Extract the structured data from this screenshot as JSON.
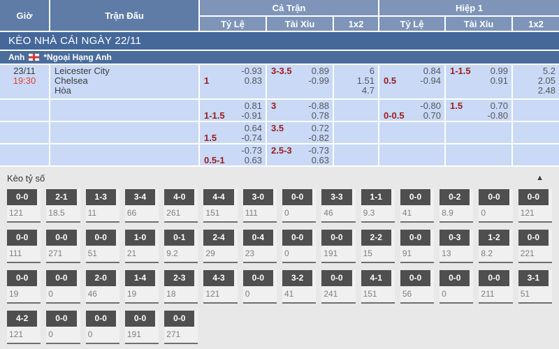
{
  "colors": {
    "header_blue": "#5e7ca6",
    "subheader_blue": "#7e95b9",
    "banner_blue": "#44689a",
    "league_blue": "#4a6d9b",
    "row_blue": "#c9d9f6",
    "accent_red": "#e63b2f",
    "handicap_maroon": "#9b1c1c",
    "score_box_gray": "#4f4f4f"
  },
  "table_header": {
    "time": "Giờ",
    "match": "Trận Đấu",
    "full_time": "Cả Trận",
    "first_half": "Hiệp 1",
    "handicap": "Tỷ Lệ",
    "over_under": "Tài Xỉu",
    "one_x_two": "1x2"
  },
  "date_banner": {
    "title": "KÈO NHÀ CÁI NGÀY 22/11"
  },
  "league_banner": {
    "country": "Anh",
    "flag_icon": "england-flag-icon",
    "league": "*Ngoại Hạng Anh"
  },
  "match": {
    "date": "23/11",
    "time": "19:30",
    "home": "Leicester City",
    "away": "Chelsea",
    "draw_label": "Hòa"
  },
  "odds_rows": [
    {
      "ft_handicap": {
        "line": "1",
        "over": "-0.93",
        "under": "0.83"
      },
      "ft_overunder": {
        "line": "3-3.5",
        "over": "0.89",
        "under": "-0.99"
      },
      "ft_1x2": {
        "home": "6",
        "away": "1.51",
        "draw": "4.7"
      },
      "h1_handicap": {
        "line": "0.5",
        "over": "0.84",
        "under": "-0.94"
      },
      "h1_overunder": {
        "line": "1-1.5",
        "over": "0.99",
        "under": "0.91"
      },
      "h1_1x2": {
        "home": "5.2",
        "away": "2.05",
        "draw": "2.48"
      }
    },
    {
      "ft_handicap": {
        "line": "1-1.5",
        "over": "0.81",
        "under": "-0.91"
      },
      "ft_overunder": {
        "line": "3",
        "over": "-0.88",
        "under": "0.78"
      },
      "h1_handicap": {
        "line": "0-0.5",
        "over": "-0.80",
        "under": "0.70"
      },
      "h1_overunder": {
        "line": "1.5",
        "over": "0.70",
        "under": "-0.80"
      }
    },
    {
      "ft_handicap": {
        "line": "1.5",
        "over": "0.64",
        "under": "-0.74"
      },
      "ft_overunder": {
        "line": "3.5",
        "over": "0.72",
        "under": "-0.82"
      }
    },
    {
      "ft_handicap": {
        "line": "0.5-1",
        "over": "-0.73",
        "under": "0.63"
      },
      "ft_overunder": {
        "line": "2.5-3",
        "over": "-0.73",
        "under": "0.63"
      }
    }
  ],
  "score_section": {
    "title": "Kèo tỷ số",
    "collapse_icon_glyph": "▲",
    "rows": [
      [
        {
          "score": "0-0",
          "odds": "121"
        },
        {
          "score": "2-1",
          "odds": "18.5"
        },
        {
          "score": "1-3",
          "odds": "11"
        },
        {
          "score": "3-4",
          "odds": "66"
        },
        {
          "score": "4-0",
          "odds": "261"
        },
        {
          "score": "4-4",
          "odds": "151"
        },
        {
          "score": "3-0",
          "odds": "111"
        },
        {
          "score": "0-0",
          "odds": "0"
        },
        {
          "score": "3-3",
          "odds": "46"
        },
        {
          "score": "1-1",
          "odds": "9.3"
        },
        {
          "score": "0-0",
          "odds": "41"
        },
        {
          "score": "0-2",
          "odds": "8.9"
        },
        {
          "score": "0-0",
          "odds": "0"
        },
        {
          "score": "0-0",
          "odds": "121"
        }
      ],
      [
        {
          "score": "0-0",
          "odds": "111"
        },
        {
          "score": "0-0",
          "odds": "271"
        },
        {
          "score": "0-0",
          "odds": "51"
        },
        {
          "score": "1-0",
          "odds": "21"
        },
        {
          "score": "0-1",
          "odds": "9.2"
        },
        {
          "score": "2-4",
          "odds": "29"
        },
        {
          "score": "0-4",
          "odds": "23"
        },
        {
          "score": "0-0",
          "odds": "0"
        },
        {
          "score": "0-0",
          "odds": "191"
        },
        {
          "score": "2-2",
          "odds": "15"
        },
        {
          "score": "0-0",
          "odds": "91"
        },
        {
          "score": "0-3",
          "odds": "13"
        },
        {
          "score": "1-2",
          "odds": "8.2"
        },
        {
          "score": "0-0",
          "odds": "221"
        }
      ],
      [
        {
          "score": "0-0",
          "odds": "19"
        },
        {
          "score": "0-0",
          "odds": "0"
        },
        {
          "score": "2-0",
          "odds": "46"
        },
        {
          "score": "1-4",
          "odds": "19"
        },
        {
          "score": "2-3",
          "odds": "18"
        },
        {
          "score": "4-3",
          "odds": "121"
        },
        {
          "score": "0-0",
          "odds": "0"
        },
        {
          "score": "3-2",
          "odds": "41"
        },
        {
          "score": "0-0",
          "odds": "241"
        },
        {
          "score": "4-1",
          "odds": "151"
        },
        {
          "score": "0-0",
          "odds": "56"
        },
        {
          "score": "0-0",
          "odds": "0"
        },
        {
          "score": "0-0",
          "odds": "211"
        },
        {
          "score": "3-1",
          "odds": "51"
        }
      ],
      [
        {
          "score": "4-2",
          "odds": "121"
        },
        {
          "score": "0-0",
          "odds": "0"
        },
        {
          "score": "0-0",
          "odds": "0"
        },
        {
          "score": "0-0",
          "odds": "191"
        },
        {
          "score": "0-0",
          "odds": "271"
        }
      ]
    ]
  }
}
